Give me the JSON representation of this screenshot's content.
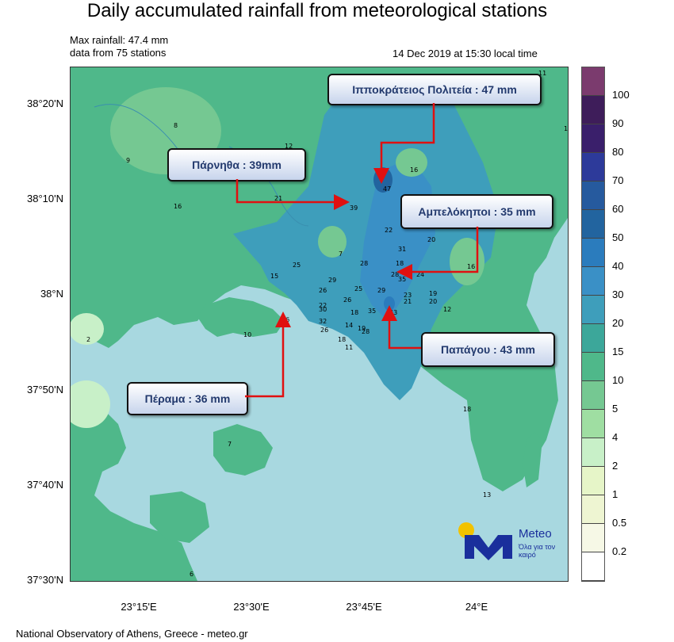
{
  "title": "Daily accumulated rainfall from meteorological stations",
  "max_rainfall": "Max rainfall: 47.4 mm",
  "stations": "data from 75 stations",
  "timestamp": "14 Dec 2019 at 15:30 local time",
  "footer": "National Observatory of Athens, Greece - meteo.gr",
  "lat_ticks": [
    "38°20'N",
    "38°10'N",
    "38°N",
    "37°50'N",
    "37°40'N",
    "37°30'N"
  ],
  "lon_ticks": [
    "23°15'E",
    "23°30'E",
    "23°45'E",
    "24°E"
  ],
  "legend": {
    "labels": [
      "100",
      "90",
      "80",
      "70",
      "60",
      "50",
      "40",
      "30",
      "20",
      "15",
      "10",
      "5",
      "4",
      "2",
      "1",
      "0.5",
      "0.2"
    ],
    "colors": [
      "#7b3b6e",
      "#3e1d5a",
      "#3a1f6b",
      "#2d3a9a",
      "#265a9e",
      "#22649f",
      "#2b7cbd",
      "#3a90c6",
      "#3e9ebb",
      "#3ca79a",
      "#4fb88a",
      "#75c892",
      "#9fdea2",
      "#c8f0c8",
      "#e6f5c8",
      "#eef5d2",
      "#f6f8e6",
      "#ffffff"
    ]
  },
  "callouts": {
    "ippokrateios": "Ιπποκράτειος Πολιτεία : 47 mm",
    "parnitha": "Πάρνηθα : 39mm",
    "ampelokipoi": "Αμπελόκηποι : 35 mm",
    "papagou": "Παπάγου : 43 mm",
    "perama": "Πέραμα : 36 mm"
  },
  "station_values": [
    "11",
    "11",
    "8",
    "9",
    "12",
    "16",
    "16",
    "47",
    "21",
    "39",
    "16",
    "22",
    "20",
    "7",
    "28",
    "31",
    "25",
    "15",
    "18",
    "28",
    "29",
    "24",
    "35",
    "26",
    "25",
    "29",
    "23",
    "19",
    "21",
    "20",
    "26",
    "22",
    "30",
    "12",
    "32",
    "35",
    "43",
    "36",
    "18",
    "19",
    "14",
    "26",
    "18",
    "28",
    "11",
    "10",
    "2",
    "18",
    "7",
    "13",
    "6"
  ],
  "logo": {
    "word": "Meteo",
    "tagline": "Όλα για τον καιρό"
  }
}
